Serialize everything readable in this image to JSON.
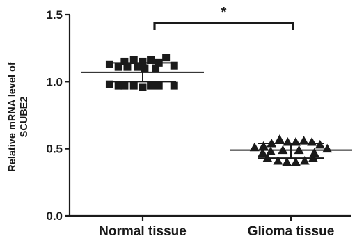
{
  "chart_data": {
    "type": "scatter",
    "title": "",
    "xlabel": "",
    "ylabel_lines": [
      "Relative mRNA level of",
      "SCUBE2"
    ],
    "ylim": [
      0.0,
      1.5
    ],
    "yticks": [
      "0.0",
      "0.5",
      "1.0",
      "1.5"
    ],
    "ytick_values": [
      0.0,
      0.5,
      1.0,
      1.5
    ],
    "grid": false,
    "categories": [
      "Normal tissue",
      "Glioma tissue"
    ],
    "series": [
      {
        "category": "Normal tissue",
        "marker": "square",
        "mean": 1.07,
        "error": [
          1.0,
          1.14
        ],
        "points": [
          {
            "j": -0.82,
            "y": 1.13
          },
          {
            "j": -0.6,
            "y": 1.11
          },
          {
            "j": -0.45,
            "y": 1.15
          },
          {
            "j": -0.22,
            "y": 1.16
          },
          {
            "j": 0.0,
            "y": 1.15
          },
          {
            "j": 0.2,
            "y": 1.16
          },
          {
            "j": 0.4,
            "y": 1.14
          },
          {
            "j": 0.58,
            "y": 1.18
          },
          {
            "j": 0.78,
            "y": 1.12
          },
          {
            "j": -0.38,
            "y": 1.11
          },
          {
            "j": 0.05,
            "y": 1.1
          },
          {
            "j": -0.12,
            "y": 1.11
          },
          {
            "j": 0.32,
            "y": 1.1
          },
          {
            "j": -0.82,
            "y": 0.98
          },
          {
            "j": -0.6,
            "y": 0.97
          },
          {
            "j": -0.45,
            "y": 0.97
          },
          {
            "j": -0.22,
            "y": 0.97
          },
          {
            "j": 0.0,
            "y": 0.96
          },
          {
            "j": 0.2,
            "y": 0.97
          },
          {
            "j": 0.4,
            "y": 0.97
          },
          {
            "j": 0.78,
            "y": 0.97
          }
        ]
      },
      {
        "category": "Glioma tissue",
        "marker": "triangle",
        "mean": 0.49,
        "error": [
          0.43,
          0.54
        ],
        "points": [
          {
            "j": -0.9,
            "y": 0.51
          },
          {
            "j": -0.68,
            "y": 0.52
          },
          {
            "j": -0.48,
            "y": 0.54
          },
          {
            "j": -0.28,
            "y": 0.57
          },
          {
            "j": -0.08,
            "y": 0.55
          },
          {
            "j": 0.12,
            "y": 0.55
          },
          {
            "j": 0.32,
            "y": 0.56
          },
          {
            "j": 0.52,
            "y": 0.55
          },
          {
            "j": 0.72,
            "y": 0.53
          },
          {
            "j": 0.9,
            "y": 0.5
          },
          {
            "j": -0.7,
            "y": 0.47
          },
          {
            "j": -0.5,
            "y": 0.48
          },
          {
            "j": -0.2,
            "y": 0.49
          },
          {
            "j": 0.2,
            "y": 0.49
          },
          {
            "j": 0.58,
            "y": 0.47
          },
          {
            "j": -0.58,
            "y": 0.43
          },
          {
            "j": -0.32,
            "y": 0.41
          },
          {
            "j": -0.1,
            "y": 0.4
          },
          {
            "j": 0.12,
            "y": 0.4
          },
          {
            "j": 0.34,
            "y": 0.41
          },
          {
            "j": 0.55,
            "y": 0.43
          }
        ]
      }
    ],
    "significance": {
      "between": [
        "Normal tissue",
        "Glioma tissue"
      ],
      "label": "*"
    }
  }
}
